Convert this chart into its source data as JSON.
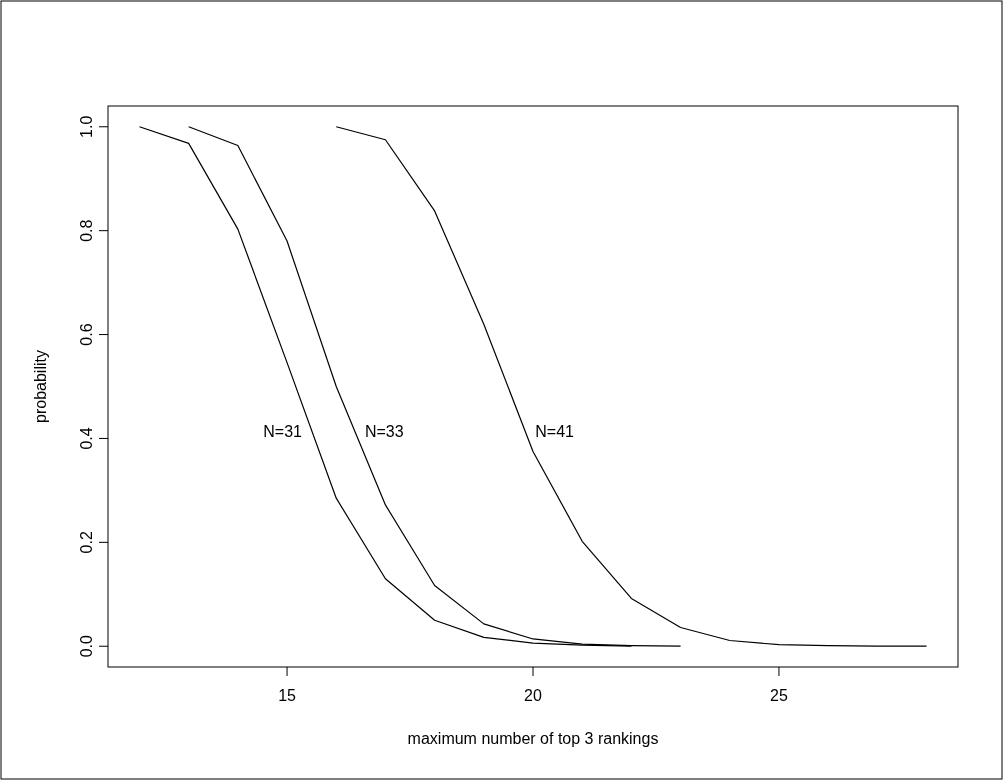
{
  "chart_data": {
    "type": "line",
    "xlabel": "maximum number of top 3 rankings",
    "ylabel": "probability",
    "xlim": [
      11.36,
      28.64
    ],
    "ylim": [
      -0.04,
      1.04
    ],
    "xticks": [
      15,
      20,
      25
    ],
    "yticks": [
      {
        "value": 0,
        "label": "0.0"
      },
      0.2,
      0.4,
      0.6,
      0.8,
      {
        "value": 1,
        "label": "1.0"
      }
    ],
    "grid": false,
    "marker": "none",
    "line_style": "solid",
    "series": [
      {
        "name": "N=31",
        "color": "#000000",
        "x": [
          12,
          13,
          14,
          15,
          16,
          17,
          18,
          19,
          20,
          21,
          22
        ],
        "values": [
          1,
          0.968,
          0.803,
          0.546,
          0.285,
          0.13,
          0.05,
          0.017,
          0.006,
          0.002,
          0
        ]
      },
      {
        "name": "N=33",
        "color": "#000000",
        "x": [
          13,
          14,
          15,
          16,
          17,
          18,
          19,
          20,
          21,
          22,
          23
        ],
        "values": [
          1,
          0.964,
          0.78,
          0.5,
          0.272,
          0.117,
          0.043,
          0.014,
          0.004,
          0.001,
          0
        ]
      },
      {
        "name": "N=41",
        "color": "#000000",
        "x": [
          16,
          17,
          18,
          19,
          20,
          21,
          22,
          23,
          24,
          25,
          26,
          27,
          28
        ],
        "values": [
          1,
          0.975,
          0.838,
          0.62,
          0.375,
          0.202,
          0.092,
          0.036,
          0.011,
          0.003,
          0.001,
          0,
          0
        ]
      }
    ]
  }
}
